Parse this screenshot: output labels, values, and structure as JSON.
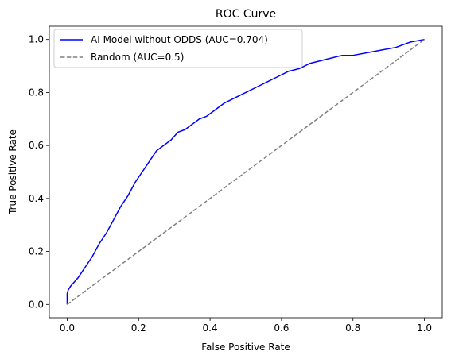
{
  "chart_data": {
    "type": "line",
    "title": "ROC Curve",
    "xlabel": "False Positive Rate",
    "ylabel": "True Positive Rate",
    "xlim": [
      -0.05,
      1.05
    ],
    "ylim": [
      -0.05,
      1.05
    ],
    "x_ticks": [
      0.0,
      0.2,
      0.4,
      0.6,
      0.8,
      1.0
    ],
    "y_ticks": [
      0.0,
      0.2,
      0.4,
      0.6,
      0.8,
      1.0
    ],
    "x_tick_labels": [
      "0.0",
      "0.2",
      "0.4",
      "0.6",
      "0.8",
      "1.0"
    ],
    "y_tick_labels": [
      "0.0",
      "0.2",
      "0.4",
      "0.6",
      "0.8",
      "1.0"
    ],
    "grid": false,
    "legend_position": "upper-left",
    "series": [
      {
        "name": "AI Model without ODDS (AUC=0.704)",
        "color": "#0000ff",
        "style": "solid",
        "x": [
          0.0,
          0.0,
          0.003,
          0.01,
          0.02,
          0.03,
          0.04,
          0.05,
          0.07,
          0.09,
          0.11,
          0.13,
          0.15,
          0.17,
          0.19,
          0.21,
          0.23,
          0.25,
          0.27,
          0.29,
          0.31,
          0.33,
          0.35,
          0.37,
          0.39,
          0.41,
          0.44,
          0.47,
          0.5,
          0.53,
          0.56,
          0.59,
          0.62,
          0.65,
          0.68,
          0.71,
          0.74,
          0.77,
          0.8,
          0.84,
          0.88,
          0.92,
          0.96,
          1.0
        ],
        "y": [
          0.0,
          0.04,
          0.055,
          0.07,
          0.085,
          0.1,
          0.12,
          0.14,
          0.18,
          0.23,
          0.27,
          0.32,
          0.37,
          0.41,
          0.46,
          0.5,
          0.54,
          0.58,
          0.6,
          0.62,
          0.65,
          0.66,
          0.68,
          0.7,
          0.71,
          0.73,
          0.76,
          0.78,
          0.8,
          0.82,
          0.84,
          0.86,
          0.88,
          0.89,
          0.91,
          0.92,
          0.93,
          0.94,
          0.94,
          0.95,
          0.96,
          0.97,
          0.99,
          1.0
        ]
      },
      {
        "name": "Random (AUC=0.5)",
        "color": "#808080",
        "style": "dashed",
        "x": [
          0.0,
          1.0
        ],
        "y": [
          0.0,
          1.0
        ]
      }
    ]
  }
}
